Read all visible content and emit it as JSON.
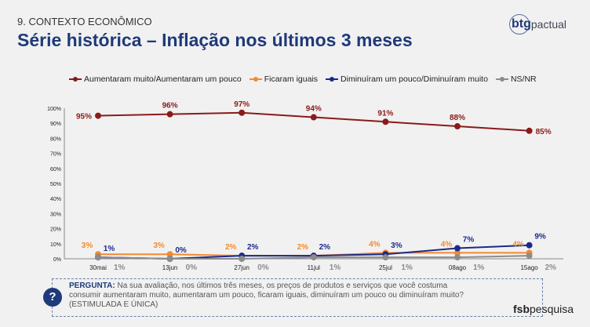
{
  "section": "9. CONTEXTO ECONÔMICO",
  "title": "Série histórica – Inflação nos últimos 3 meses",
  "logo": {
    "brand": "btg",
    "suffix": "pactual"
  },
  "question": {
    "label": "PERGUNTA:",
    "text": "Na sua avaliação, nos últimos três meses, os preços de produtos e serviços que você costuma consumir aumentaram muito, aumentaram um pouco, ficaram iguais, diminuíram um pouco ou diminuíram muito? (ESTIMULADA E ÚNICA)",
    "icon": "?"
  },
  "footer_logo": {
    "a": "fsb",
    "b": "pesquisa"
  },
  "chart_data": {
    "type": "line",
    "categories": [
      "30mai",
      "13jun",
      "27jun",
      "11jul",
      "25jul",
      "08ago",
      "15ago"
    ],
    "ylim": [
      0,
      100
    ],
    "yticks": [
      "0%",
      "10%",
      "20%",
      "30%",
      "40%",
      "50%",
      "60%",
      "70%",
      "80%",
      "90%",
      "100%"
    ],
    "legend_position": "top",
    "series": [
      {
        "name": "Aumentaram muito/Aumentaram um pouco",
        "color": "#8b1a1a",
        "values": [
          95,
          96,
          97,
          94,
          91,
          88,
          85
        ]
      },
      {
        "name": "Ficaram iguais",
        "color": "#f28a30",
        "values": [
          3,
          3,
          2,
          2,
          4,
          4,
          4
        ]
      },
      {
        "name": "Diminuíram um pouco/Diminuíram muito",
        "color": "#1a2a8a",
        "values": [
          1,
          0,
          2,
          2,
          3,
          7,
          9
        ]
      },
      {
        "name": "NS/NR",
        "color": "#8c8c8c",
        "values": [
          1,
          0,
          0,
          1,
          1,
          1,
          2
        ]
      }
    ]
  }
}
